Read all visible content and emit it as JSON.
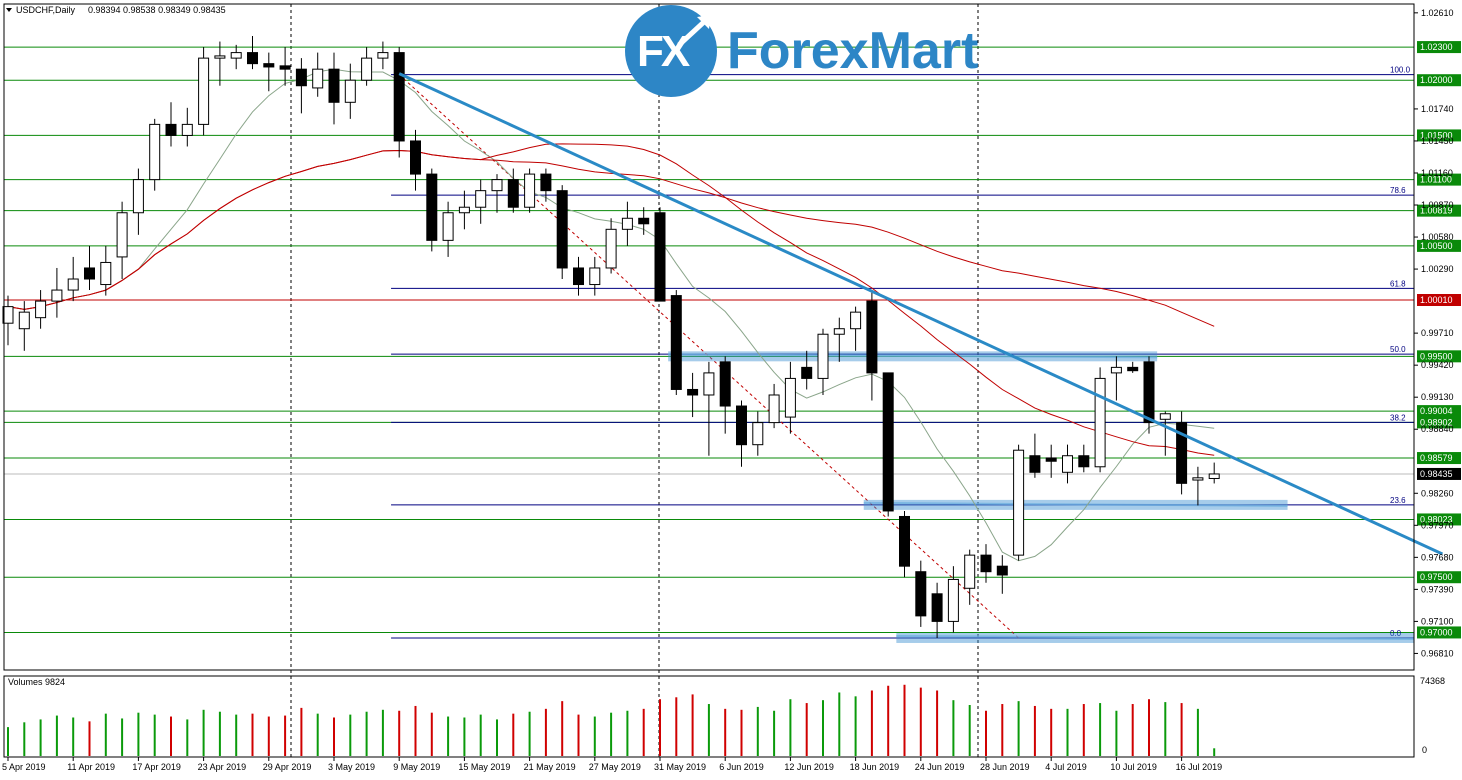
{
  "header": {
    "symbol_label": "USDCHF,Daily",
    "ohlc": "0.98394 0.98538 0.98349 0.98435"
  },
  "logo": {
    "fx": "FX",
    "brand": "ForexMart",
    "colors": {
      "brand": "#2d86c6"
    }
  },
  "volume_panel": {
    "label": "Volumes 9824",
    "max_label": "74368",
    "zero_label": "0"
  },
  "chart_data": {
    "type": "candlestick",
    "title": "USDCHF,Daily",
    "ylim": [
      0.9666,
      1.0269
    ],
    "y_ticks": [
      "1.02610",
      "1.01740",
      "1.01450",
      "1.01160",
      "1.00870",
      "1.00580",
      "1.00290",
      "0.99710",
      "0.99420",
      "0.99130",
      "0.98840",
      "0.98260",
      "0.97970",
      "0.97680",
      "0.97390",
      "0.97100",
      "0.96810"
    ],
    "x_ticks": [
      {
        "label": "5 Apr 2019",
        "index": 0
      },
      {
        "label": "11 Apr 2019",
        "index": 4
      },
      {
        "label": "17 Apr 2019",
        "index": 8
      },
      {
        "label": "23 Apr 2019",
        "index": 12
      },
      {
        "label": "29 Apr 2019",
        "index": 16
      },
      {
        "label": "3 May 2019",
        "index": 20
      },
      {
        "label": "9 May 2019",
        "index": 24
      },
      {
        "label": "15 May 2019",
        "index": 28
      },
      {
        "label": "21 May 2019",
        "index": 32
      },
      {
        "label": "27 May 2019",
        "index": 36
      },
      {
        "label": "31 May 2019",
        "index": 40
      },
      {
        "label": "6 Jun 2019",
        "index": 44
      },
      {
        "label": "12 Jun 2019",
        "index": 48
      },
      {
        "label": "18 Jun 2019",
        "index": 52
      },
      {
        "label": "24 Jun 2019",
        "index": 56
      },
      {
        "label": "28 Jun 2019",
        "index": 60
      },
      {
        "label": "4 Jul 2019",
        "index": 64
      },
      {
        "label": "10 Jul 2019",
        "index": 68
      },
      {
        "label": "16 Jul 2019",
        "index": 72
      }
    ],
    "candles": [
      [
        0.998,
        1.0005,
        0.996,
        0.9995
      ],
      [
        0.9975,
        1.0,
        0.9955,
        0.999
      ],
      [
        0.9985,
        1.001,
        0.9975,
        1.0
      ],
      [
        1.0,
        1.003,
        0.9985,
        1.001
      ],
      [
        1.001,
        1.004,
        1.0,
        1.002
      ],
      [
        1.003,
        1.005,
        1.001,
        1.002
      ],
      [
        1.0015,
        1.005,
        1.0005,
        1.0035
      ],
      [
        1.004,
        1.009,
        1.002,
        1.008
      ],
      [
        1.008,
        1.012,
        1.006,
        1.011
      ],
      [
        1.011,
        1.0165,
        1.01,
        1.016
      ],
      [
        1.016,
        1.018,
        1.014,
        1.015
      ],
      [
        1.015,
        1.0175,
        1.014,
        1.016
      ],
      [
        1.016,
        1.023,
        1.015,
        1.022
      ],
      [
        1.022,
        1.0235,
        1.0195,
        1.0222
      ],
      [
        1.022,
        1.0232,
        1.021,
        1.0225
      ],
      [
        1.0225,
        1.024,
        1.021,
        1.0215
      ],
      [
        1.0215,
        1.0225,
        1.019,
        1.0212
      ],
      [
        1.0213,
        1.023,
        1.0195,
        1.021
      ],
      [
        1.021,
        1.022,
        1.017,
        1.0195
      ],
      [
        1.0193,
        1.0225,
        1.0185,
        1.021
      ],
      [
        1.021,
        1.0225,
        1.016,
        1.018
      ],
      [
        1.018,
        1.0215,
        1.0165,
        1.02
      ],
      [
        1.02,
        1.023,
        1.0195,
        1.022
      ],
      [
        1.022,
        1.0235,
        1.021,
        1.0225
      ],
      [
        1.0225,
        1.023,
        1.013,
        1.0145
      ],
      [
        1.0145,
        1.0155,
        1.01,
        1.0115
      ],
      [
        1.0115,
        1.012,
        1.0045,
        1.0055
      ],
      [
        1.0055,
        1.009,
        1.004,
        1.008
      ],
      [
        1.008,
        1.01,
        1.0065,
        1.0085
      ],
      [
        1.0085,
        1.011,
        1.007,
        1.01
      ],
      [
        1.01,
        1.0115,
        1.008,
        1.011
      ],
      [
        1.011,
        1.012,
        1.008,
        1.0085
      ],
      [
        1.0085,
        1.012,
        1.008,
        1.0115
      ],
      [
        1.0115,
        1.012,
        1.009,
        1.01
      ],
      [
        1.01,
        1.0105,
        1.002,
        1.003
      ],
      [
        1.003,
        1.004,
        1.0005,
        1.0015
      ],
      [
        1.0015,
        1.004,
        1.0005,
        1.003
      ],
      [
        1.003,
        1.0075,
        1.0025,
        1.0065
      ],
      [
        1.0065,
        1.009,
        1.005,
        1.0075
      ],
      [
        1.0075,
        1.0085,
        1.006,
        1.007
      ],
      [
        1.008,
        1.0085,
        1.0,
        1.0
      ],
      [
        1.0005,
        1.001,
        0.9915,
        0.992
      ],
      [
        0.992,
        0.9935,
        0.9895,
        0.9915
      ],
      [
        0.9915,
        0.9945,
        0.986,
        0.9935
      ],
      [
        0.9945,
        0.995,
        0.988,
        0.9905
      ],
      [
        0.9905,
        0.991,
        0.985,
        0.987
      ],
      [
        0.987,
        0.99,
        0.986,
        0.989
      ],
      [
        0.989,
        0.9925,
        0.9885,
        0.9915
      ],
      [
        0.9895,
        0.9945,
        0.988,
        0.993
      ],
      [
        0.994,
        0.9955,
        0.992,
        0.993
      ],
      [
        0.993,
        0.9975,
        0.9915,
        0.997
      ],
      [
        0.997,
        0.9985,
        0.9945,
        0.9975
      ],
      [
        0.9975,
        0.9995,
        0.9955,
        0.999
      ],
      [
        1.0,
        1.001,
        0.991,
        0.9935
      ],
      [
        0.9935,
        0.9935,
        0.9805,
        0.981
      ],
      [
        0.9805,
        0.981,
        0.975,
        0.976
      ],
      [
        0.9755,
        0.9765,
        0.9705,
        0.9715
      ],
      [
        0.9735,
        0.9745,
        0.9695,
        0.971
      ],
      [
        0.971,
        0.976,
        0.97,
        0.9748
      ],
      [
        0.974,
        0.9775,
        0.9725,
        0.977
      ],
      [
        0.977,
        0.978,
        0.9745,
        0.9755
      ],
      [
        0.976,
        0.977,
        0.9735,
        0.9752
      ],
      [
        0.977,
        0.987,
        0.9765,
        0.9865
      ],
      [
        0.986,
        0.988,
        0.984,
        0.9845
      ],
      [
        0.9858,
        0.987,
        0.984,
        0.9855
      ],
      [
        0.9845,
        0.987,
        0.9835,
        0.986
      ],
      [
        0.986,
        0.987,
        0.9845,
        0.985
      ],
      [
        0.985,
        0.994,
        0.9845,
        0.993
      ],
      [
        0.9935,
        0.995,
        0.991,
        0.994
      ],
      [
        0.994,
        0.9945,
        0.9935,
        0.9937
      ],
      [
        0.9945,
        0.995,
        0.988,
        0.989
      ],
      [
        0.9893,
        0.99,
        0.986,
        0.9898
      ],
      [
        0.989,
        0.99,
        0.9825,
        0.9835
      ],
      [
        0.9838,
        0.985,
        0.9815,
        0.984
      ],
      [
        0.98394,
        0.98538,
        0.98349,
        0.98435
      ]
    ],
    "support_resistance_levels": [
      {
        "label": "1.02300",
        "value": 1.023
      },
      {
        "label": "1.02000",
        "value": 1.02
      },
      {
        "label": "1.01500",
        "value": 1.015
      },
      {
        "label": "1.01100",
        "value": 1.011
      },
      {
        "label": "1.00819",
        "value": 1.00819
      },
      {
        "label": "1.00500",
        "value": 1.005
      },
      {
        "label": "1.00010",
        "value": 1.0001,
        "color": "#c00000"
      },
      {
        "label": "0.99500",
        "value": 0.995
      },
      {
        "label": "0.99004",
        "value": 0.99004
      },
      {
        "label": "0.98902",
        "value": 0.98902
      },
      {
        "label": "0.98579",
        "value": 0.98579
      },
      {
        "label": "0.98023",
        "value": 0.98023
      },
      {
        "label": "0.97500",
        "value": 0.975
      },
      {
        "label": "0.97000",
        "value": 0.97
      }
    ],
    "current_price_label": "0.98435",
    "fibonacci": [
      {
        "label": "100.0",
        "value": 1.0205
      },
      {
        "label": "78.6",
        "value": 1.0096
      },
      {
        "label": "61.8",
        "value": 1.00115
      },
      {
        "label": "50.0",
        "value": 0.9952
      },
      {
        "label": "38.2",
        "value": 0.98902
      },
      {
        "label": "23.6",
        "value": 0.98155
      },
      {
        "label": "0.0",
        "value": 0.9695
      }
    ],
    "trendline": {
      "start": {
        "index": 24,
        "value": 1.0206
      },
      "end": {
        "index": 88,
        "value": 0.9771
      }
    },
    "volumes": [
      30,
      35,
      38,
      42,
      40,
      36,
      44,
      39,
      45,
      43,
      41,
      38,
      48,
      46,
      43,
      44,
      41,
      42,
      50,
      44,
      40,
      43,
      46,
      48,
      47,
      52,
      45,
      41,
      40,
      43,
      38,
      44,
      46,
      49,
      57,
      43,
      41,
      45,
      47,
      49,
      59,
      61,
      64,
      54,
      49,
      48,
      51,
      47,
      59,
      55,
      58,
      66,
      62,
      68,
      73,
      74,
      71,
      68,
      58,
      53,
      47,
      54,
      57,
      52,
      49,
      49,
      54,
      55,
      47,
      54,
      59,
      56,
      55,
      49,
      8
    ],
    "colors": {
      "up_volume": "#0a9a0a",
      "down_volume": "#d00000",
      "trendline": "#2a8ac6",
      "support": "#0a8a0a",
      "fib": "#000080",
      "ma_slow": "#c00000",
      "ma_fast": "#8aa58a"
    }
  }
}
